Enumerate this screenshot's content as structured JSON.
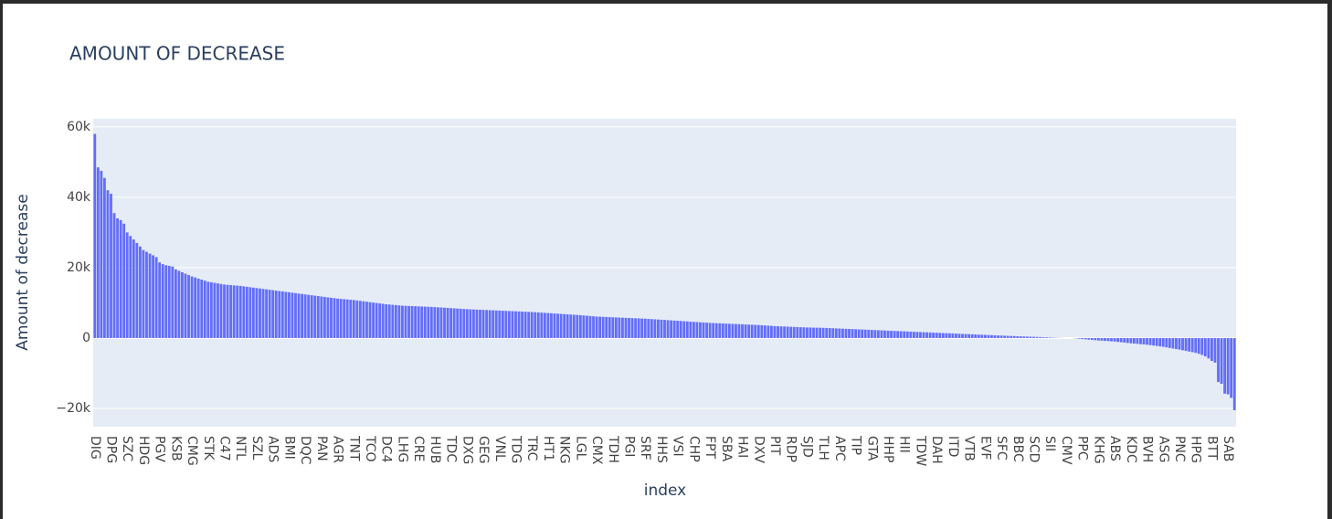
{
  "chart_data": {
    "type": "bar",
    "title": "AMOUNT OF DECREASE",
    "x_label": "index",
    "y_label": "Amount of decrease",
    "color": "#636efa",
    "grid": true,
    "ylim": [
      -25200,
      62300
    ],
    "yticks": [
      {
        "value": -20000,
        "label": "−20k"
      },
      0,
      {
        "value": 20000,
        "label": "20k"
      },
      {
        "value": 40000,
        "label": "40k"
      },
      {
        "value": 60000,
        "label": "60k"
      }
    ],
    "categories": [
      "DIG",
      null,
      null,
      null,
      null,
      "DPG",
      null,
      null,
      null,
      null,
      "SZC",
      null,
      null,
      null,
      null,
      "HDG",
      null,
      null,
      null,
      null,
      "PGV",
      null,
      null,
      null,
      null,
      "KSB",
      null,
      null,
      null,
      null,
      "CMG",
      null,
      null,
      null,
      null,
      "STK",
      null,
      null,
      null,
      null,
      "C47",
      null,
      null,
      null,
      null,
      "NTL",
      null,
      null,
      null,
      null,
      "SZL",
      null,
      null,
      null,
      null,
      "ADS",
      null,
      null,
      null,
      null,
      "BMI",
      null,
      null,
      null,
      null,
      "DQC",
      null,
      null,
      null,
      null,
      "PAN",
      null,
      null,
      null,
      null,
      "AGR",
      null,
      null,
      null,
      null,
      "TNT",
      null,
      null,
      null,
      null,
      "TCO",
      null,
      null,
      null,
      null,
      "DC4",
      null,
      null,
      null,
      null,
      "LHG",
      null,
      null,
      null,
      null,
      "CRE",
      null,
      null,
      null,
      null,
      "HUB",
      null,
      null,
      null,
      null,
      "TDC",
      null,
      null,
      null,
      null,
      "DXG",
      null,
      null,
      null,
      null,
      "GEG",
      null,
      null,
      null,
      null,
      "VNL",
      null,
      null,
      null,
      null,
      "TDG",
      null,
      null,
      null,
      null,
      "TRC",
      null,
      null,
      null,
      null,
      "HT1",
      null,
      null,
      null,
      null,
      "NKG",
      null,
      null,
      null,
      null,
      "LGL",
      null,
      null,
      null,
      null,
      "CMX",
      null,
      null,
      null,
      null,
      "TDH",
      null,
      null,
      null,
      null,
      "PGI",
      null,
      null,
      null,
      null,
      "SRF",
      null,
      null,
      null,
      null,
      "HHS",
      null,
      null,
      null,
      null,
      "VSI",
      null,
      null,
      null,
      null,
      "CHP",
      null,
      null,
      null,
      null,
      "FPT",
      null,
      null,
      null,
      null,
      "SBA",
      null,
      null,
      null,
      null,
      "HAI",
      null,
      null,
      null,
      null,
      "DXV",
      null,
      null,
      null,
      null,
      "PIT",
      null,
      null,
      null,
      null,
      "RDP",
      null,
      null,
      null,
      null,
      "SJD",
      null,
      null,
      null,
      null,
      "TLH",
      null,
      null,
      null,
      null,
      "APC",
      null,
      null,
      null,
      null,
      "TIP",
      null,
      null,
      null,
      null,
      "GTA",
      null,
      null,
      null,
      null,
      "HHP",
      null,
      null,
      null,
      null,
      "HII",
      null,
      null,
      null,
      null,
      "TDW",
      null,
      null,
      null,
      null,
      "DAH",
      null,
      null,
      null,
      null,
      "ITD",
      null,
      null,
      null,
      null,
      "VTB",
      null,
      null,
      null,
      null,
      "EVF",
      null,
      null,
      null,
      null,
      "SFC",
      null,
      null,
      null,
      null,
      "BBC",
      null,
      null,
      null,
      null,
      "SCD",
      null,
      null,
      null,
      null,
      "SII",
      null,
      null,
      null,
      null,
      "CMV",
      null,
      null,
      null,
      null,
      "PPC",
      null,
      null,
      null,
      null,
      "KHG",
      null,
      null,
      null,
      null,
      "ABS",
      null,
      null,
      null,
      null,
      "KDC",
      null,
      null,
      null,
      null,
      "BVH",
      null,
      null,
      null,
      null,
      "ASG",
      null,
      null,
      null,
      null,
      "PNC",
      null,
      null,
      null,
      null,
      "HPG",
      null,
      null,
      null,
      null,
      "BTT",
      null,
      null,
      null,
      null,
      "SAB",
      null,
      null
    ],
    "values": [
      58000,
      48500,
      47500,
      45500,
      42000,
      41000,
      35500,
      34000,
      33500,
      32500,
      30000,
      29000,
      28000,
      27000,
      26000,
      25000,
      24500,
      24000,
      23500,
      23000,
      21500,
      21000,
      20700,
      20500,
      20300,
      19500,
      19100,
      18700,
      18300,
      17900,
      17500,
      17200,
      16900,
      16600,
      16300,
      16000,
      15840,
      15680,
      15520,
      15360,
      15200,
      15120,
      15040,
      14960,
      14880,
      14800,
      14680,
      14560,
      14440,
      14320,
      14200,
      14080,
      13960,
      13840,
      13720,
      13600,
      13480,
      13360,
      13240,
      13120,
      13000,
      12880,
      12760,
      12640,
      12520,
      12400,
      12280,
      12160,
      12040,
      11920,
      11800,
      11680,
      11560,
      11440,
      11320,
      11200,
      11120,
      11040,
      10960,
      10880,
      10800,
      10680,
      10560,
      10440,
      10320,
      10200,
      10080,
      9960,
      9840,
      9720,
      9600,
      9520,
      9440,
      9360,
      9280,
      9200,
      9160,
      9120,
      9080,
      9040,
      9000,
      8960,
      8920,
      8880,
      8840,
      8800,
      8740,
      8680,
      8620,
      8560,
      8500,
      8440,
      8380,
      8320,
      8260,
      8200,
      8160,
      8120,
      8080,
      8040,
      8000,
      7960,
      7920,
      7880,
      7840,
      7800,
      7760,
      7720,
      7680,
      7640,
      7600,
      7560,
      7520,
      7480,
      7440,
      7400,
      7340,
      7280,
      7220,
      7160,
      7100,
      7040,
      6980,
      6920,
      6860,
      6800,
      6740,
      6680,
      6620,
      6560,
      6500,
      6420,
      6340,
      6260,
      6180,
      6100,
      6060,
      6020,
      5980,
      5940,
      5900,
      5860,
      5820,
      5780,
      5740,
      5700,
      5660,
      5620,
      5580,
      5540,
      5500,
      5440,
      5380,
      5320,
      5260,
      5200,
      5140,
      5080,
      5020,
      4960,
      4900,
      4840,
      4780,
      4720,
      4660,
      4600,
      4540,
      4480,
      4420,
      4360,
      4300,
      4260,
      4220,
      4180,
      4140,
      4100,
      4060,
      4020,
      3980,
      3940,
      3900,
      3860,
      3820,
      3780,
      3740,
      3700,
      3640,
      3580,
      3520,
      3460,
      3400,
      3360,
      3320,
      3280,
      3240,
      3200,
      3160,
      3120,
      3080,
      3040,
      3000,
      2980,
      2960,
      2940,
      2920,
      2900,
      2860,
      2820,
      2780,
      2740,
      2700,
      2660,
      2620,
      2580,
      2540,
      2500,
      2460,
      2420,
      2380,
      2340,
      2300,
      2260,
      2220,
      2180,
      2140,
      2100,
      2060,
      2020,
      1980,
      1940,
      1900,
      1860,
      1820,
      1780,
      1740,
      1700,
      1660,
      1620,
      1580,
      1540,
      1500,
      1460,
      1420,
      1380,
      1340,
      1300,
      1260,
      1220,
      1180,
      1140,
      1100,
      1060,
      1020,
      980,
      940,
      900,
      860,
      820,
      780,
      740,
      700,
      660,
      620,
      580,
      540,
      500,
      470,
      440,
      410,
      380,
      350,
      310,
      270,
      230,
      190,
      150,
      110,
      70,
      40,
      20,
      0,
      0,
      -20,
      -100,
      -200,
      -300,
      -380,
      -460,
      -540,
      -620,
      -700,
      -760,
      -820,
      -880,
      -940,
      -1000,
      -1100,
      -1200,
      -1300,
      -1400,
      -1500,
      -1580,
      -1660,
      -1740,
      -1820,
      -1900,
      -2020,
      -2140,
      -2260,
      -2380,
      -2500,
      -2660,
      -2820,
      -2980,
      -3140,
      -3300,
      -3480,
      -3660,
      -3840,
      -4020,
      -4200,
      -4500,
      -4800,
      -5200,
      -5800,
      -6500,
      -7000,
      -12500,
      -13000,
      -15800,
      -16000,
      -17000,
      -20500
    ]
  }
}
